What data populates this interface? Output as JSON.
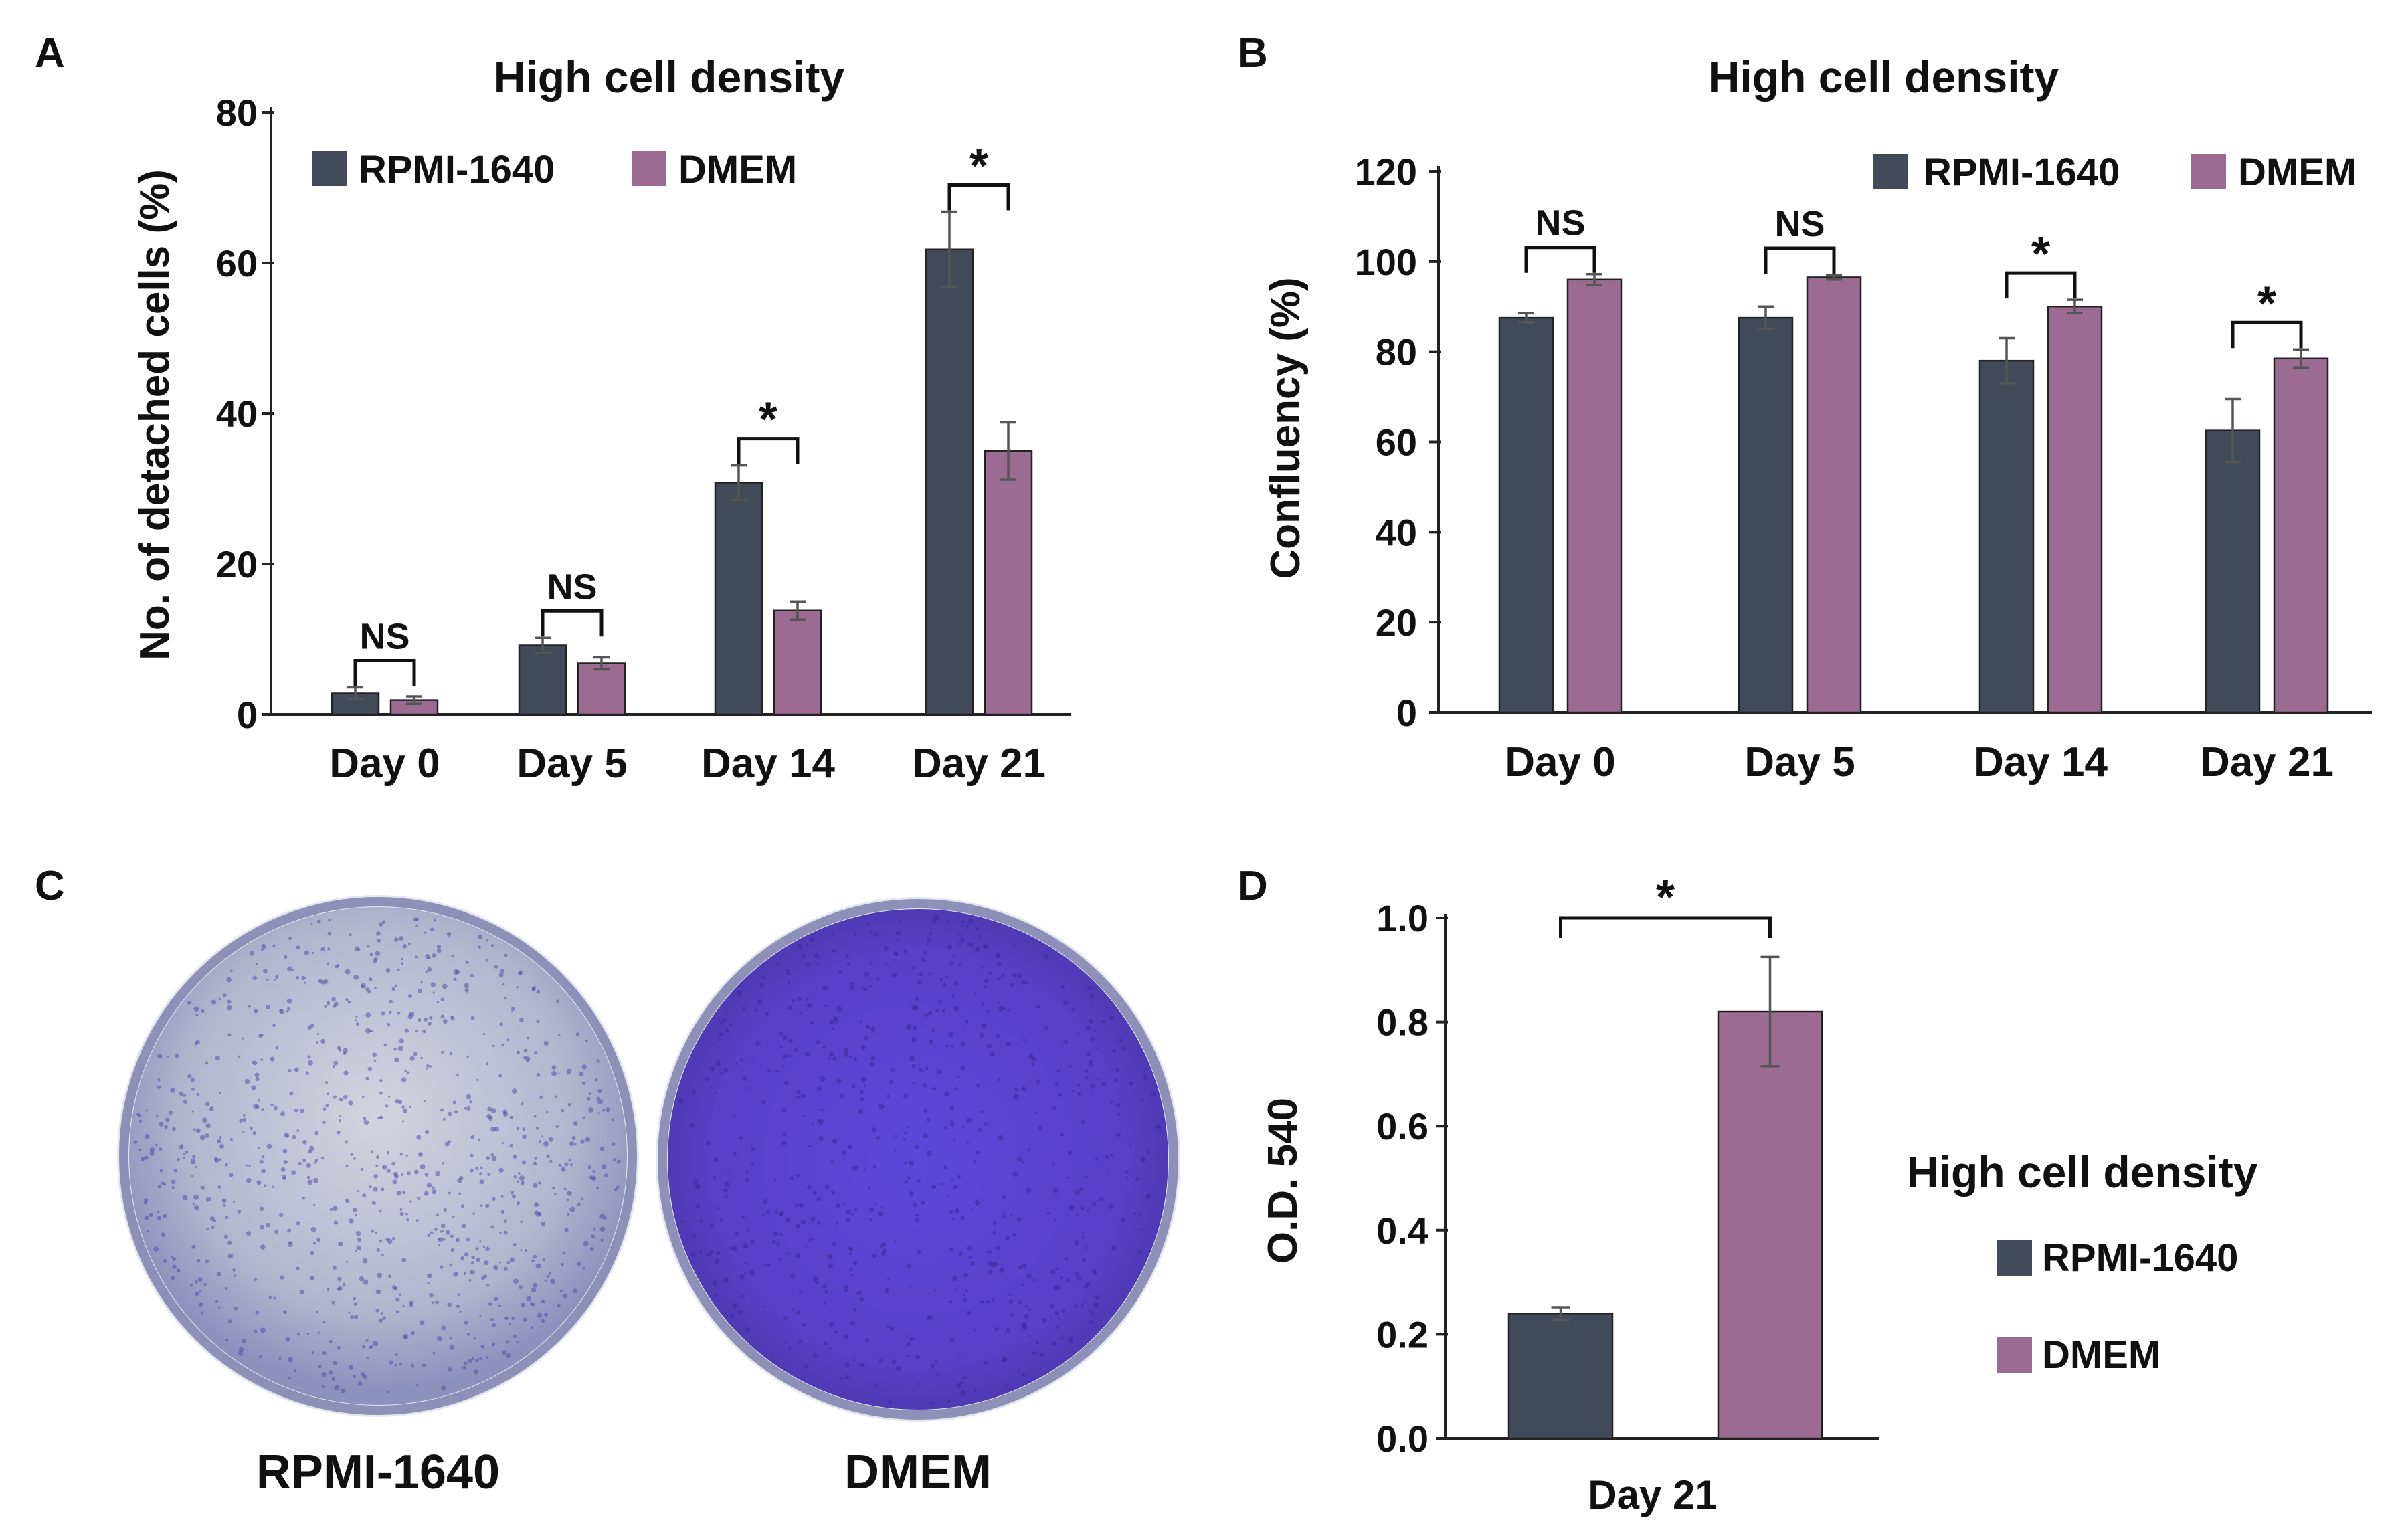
{
  "colors": {
    "rpmi": "#424a5a",
    "dmem": "#9b6b92",
    "dish_rpmi_fill": "#b7b9d4",
    "dish_dmem_fill": "#5a43c6",
    "dish_rim": "#8e90b8"
  },
  "panels": {
    "A": {
      "letter": "A"
    },
    "B": {
      "letter": "B"
    },
    "C": {
      "letter": "C",
      "labels": [
        "RPMI-1640",
        "DMEM"
      ]
    },
    "D": {
      "letter": "D"
    }
  },
  "chart_data": [
    {
      "id": "A",
      "type": "bar",
      "title": "High cell density",
      "xlabel": "",
      "ylabel": "No. of detached cells (%)",
      "ylim": [
        0,
        80
      ],
      "yticks": [
        0,
        20,
        40,
        60,
        80
      ],
      "categories": [
        "Day 0",
        "Day 5",
        "Day 14",
        "Day 21"
      ],
      "series": [
        {
          "name": "RPMI-1640",
          "values": [
            2.8,
            9.2,
            30.8,
            61.8
          ],
          "errors": [
            0.8,
            1.0,
            2.3,
            5.0
          ]
        },
        {
          "name": "DMEM",
          "values": [
            1.9,
            6.8,
            13.8,
            35.0
          ],
          "errors": [
            0.5,
            0.8,
            1.2,
            3.8
          ]
        }
      ],
      "significance": [
        "NS",
        "NS",
        "*",
        "*"
      ],
      "legend": "top-left",
      "grid": false
    },
    {
      "id": "B",
      "type": "bar",
      "title": "High cell density",
      "xlabel": "",
      "ylabel": "Confluency (%)",
      "ylim": [
        0,
        120
      ],
      "yticks": [
        0,
        20,
        40,
        60,
        80,
        100,
        120
      ],
      "categories": [
        "Day 0",
        "Day 5",
        "Day 14",
        "Day 21"
      ],
      "series": [
        {
          "name": "RPMI-1640",
          "values": [
            87.5,
            87.5,
            78.0,
            62.5
          ],
          "errors": [
            1.0,
            2.5,
            5.0,
            7.0
          ]
        },
        {
          "name": "DMEM",
          "values": [
            96.0,
            96.5,
            90.0,
            78.5
          ],
          "errors": [
            1.2,
            0.5,
            1.5,
            2.0
          ]
        }
      ],
      "significance": [
        "NS",
        "NS",
        "*",
        "*"
      ],
      "legend": "top-right",
      "grid": false
    },
    {
      "id": "D",
      "type": "bar",
      "title": "High cell density",
      "xlabel": "Day 21",
      "ylabel": "O.D. 540",
      "ylim": [
        0,
        1.0
      ],
      "yticks": [
        "0.0",
        "0.2",
        "0.4",
        "0.6",
        "0.8",
        "1.0"
      ],
      "categories": [
        "RPMI-1640",
        "DMEM"
      ],
      "values": [
        0.24,
        0.82
      ],
      "errors": [
        0.012,
        0.105
      ],
      "significance": [
        "*"
      ],
      "legend": "right",
      "grid": false
    }
  ]
}
